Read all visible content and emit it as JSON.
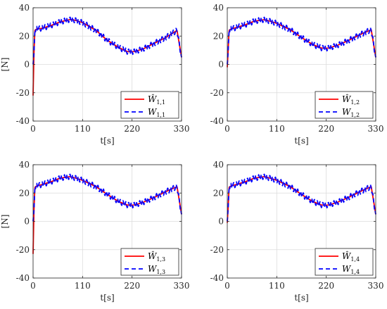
{
  "chart_data": [
    {
      "type": "line",
      "xlabel": "t[s]",
      "ylabel": "[N]",
      "xlim": [
        0,
        330
      ],
      "ylim": [
        -40,
        40
      ],
      "xticks": [
        0,
        110,
        220,
        330
      ],
      "yticks": [
        -40,
        -20,
        0,
        20,
        40
      ],
      "grid": true,
      "legend_position": "lower-right",
      "series": [
        {
          "name": "Ŵ1,1",
          "color": "#ff0000",
          "style": "solid",
          "x": [
            0,
            2,
            4,
            8,
            20,
            40,
            60,
            80,
            90,
            110,
            140,
            165,
            190,
            210,
            225,
            245,
            270,
            295,
            320,
            330
          ],
          "y": [
            -22,
            8,
            24,
            25,
            25.5,
            27.5,
            30,
            31.5,
            31.5,
            29.5,
            24,
            17,
            12,
            9,
            9,
            11,
            15,
            19,
            24,
            5
          ],
          "ripple": 0
        },
        {
          "name": "W1,1",
          "color": "#0000ff",
          "style": "dashed",
          "x": [
            0,
            2,
            4,
            8,
            20,
            40,
            60,
            80,
            90,
            110,
            140,
            165,
            190,
            210,
            225,
            245,
            270,
            295,
            320,
            330
          ],
          "y": [
            0,
            8,
            24,
            25,
            25.5,
            27.5,
            30,
            31.5,
            31.5,
            29.5,
            24,
            17,
            12,
            9,
            9,
            11,
            15,
            19,
            24,
            5
          ],
          "ripple": 1.8
        }
      ]
    },
    {
      "type": "line",
      "xlabel": "t[s]",
      "ylabel": "",
      "xlim": [
        0,
        330
      ],
      "ylim": [
        -40,
        40
      ],
      "xticks": [
        0,
        110,
        220,
        330
      ],
      "yticks": [
        -40,
        -20,
        0,
        20,
        40
      ],
      "grid": true,
      "legend_position": "lower-right",
      "series": [
        {
          "name": "Ŵ1,2",
          "color": "#ff0000",
          "style": "solid",
          "x": [
            0,
            2,
            4,
            8,
            20,
            40,
            60,
            80,
            90,
            110,
            140,
            165,
            190,
            210,
            225,
            245,
            270,
            295,
            320,
            330
          ],
          "y": [
            -2,
            10,
            24,
            25,
            26,
            28,
            30.5,
            31.5,
            31,
            29,
            24.5,
            19,
            14,
            11.5,
            11.5,
            13.5,
            17,
            21,
            24.5,
            5
          ],
          "ripple": 0
        },
        {
          "name": "W1,2",
          "color": "#0000ff",
          "style": "dashed",
          "x": [
            0,
            2,
            4,
            8,
            20,
            40,
            60,
            80,
            90,
            110,
            140,
            165,
            190,
            210,
            225,
            245,
            270,
            295,
            320,
            330
          ],
          "y": [
            0,
            10,
            24,
            25,
            26,
            28,
            30.5,
            31.5,
            31,
            29,
            24.5,
            19,
            14,
            11.5,
            11.5,
            13.5,
            17,
            21,
            24.5,
            5
          ],
          "ripple": 1.8
        }
      ]
    },
    {
      "type": "line",
      "xlabel": "t[s]",
      "ylabel": "[N]",
      "xlim": [
        0,
        330
      ],
      "ylim": [
        -40,
        40
      ],
      "xticks": [
        0,
        110,
        220,
        330
      ],
      "yticks": [
        -40,
        -20,
        0,
        20,
        40
      ],
      "grid": true,
      "legend_position": "lower-right",
      "series": [
        {
          "name": "Ŵ1,3",
          "color": "#ff0000",
          "style": "solid",
          "x": [
            0,
            2,
            4,
            8,
            20,
            40,
            60,
            80,
            90,
            110,
            140,
            165,
            190,
            210,
            225,
            245,
            270,
            295,
            320,
            330
          ],
          "y": [
            -23,
            8,
            24,
            25,
            26,
            28,
            30.5,
            31.5,
            31,
            29,
            24.5,
            19,
            14,
            11.5,
            11.5,
            13.5,
            17,
            21,
            24.5,
            5
          ],
          "ripple": 0
        },
        {
          "name": "W1,3",
          "color": "#0000ff",
          "style": "dashed",
          "x": [
            0,
            2,
            4,
            8,
            20,
            40,
            60,
            80,
            90,
            110,
            140,
            165,
            190,
            210,
            225,
            245,
            270,
            295,
            320,
            330
          ],
          "y": [
            0,
            8,
            24,
            25,
            26,
            28,
            30.5,
            31.5,
            31,
            29,
            24.5,
            19,
            14,
            11.5,
            11.5,
            13.5,
            17,
            21,
            24.5,
            5
          ],
          "ripple": 1.8
        }
      ]
    },
    {
      "type": "line",
      "xlabel": "t[s]",
      "ylabel": "",
      "xlim": [
        0,
        330
      ],
      "ylim": [
        -40,
        40
      ],
      "xticks": [
        0,
        110,
        220,
        330
      ],
      "yticks": [
        -40,
        -20,
        0,
        20,
        40
      ],
      "grid": true,
      "legend_position": "lower-right",
      "series": [
        {
          "name": "Ŵ1,4",
          "color": "#ff0000",
          "style": "solid",
          "x": [
            0,
            2,
            4,
            8,
            20,
            40,
            60,
            80,
            90,
            110,
            140,
            165,
            190,
            210,
            225,
            245,
            270,
            295,
            320,
            330
          ],
          "y": [
            -1,
            10,
            24,
            25,
            26,
            28,
            30.5,
            31.5,
            31,
            29,
            24.5,
            19,
            14,
            11.5,
            11.5,
            13.5,
            17,
            21,
            24.5,
            5
          ],
          "ripple": 0
        },
        {
          "name": "W1,4",
          "color": "#0000ff",
          "style": "dashed",
          "x": [
            0,
            2,
            4,
            8,
            20,
            40,
            60,
            80,
            90,
            110,
            140,
            165,
            190,
            210,
            225,
            245,
            270,
            295,
            320,
            330
          ],
          "y": [
            0,
            10,
            24,
            25,
            26,
            28,
            30.5,
            31.5,
            31,
            29,
            24.5,
            19,
            14,
            11.5,
            11.5,
            13.5,
            17,
            21,
            24.5,
            5
          ],
          "ripple": 1.8
        }
      ]
    }
  ]
}
